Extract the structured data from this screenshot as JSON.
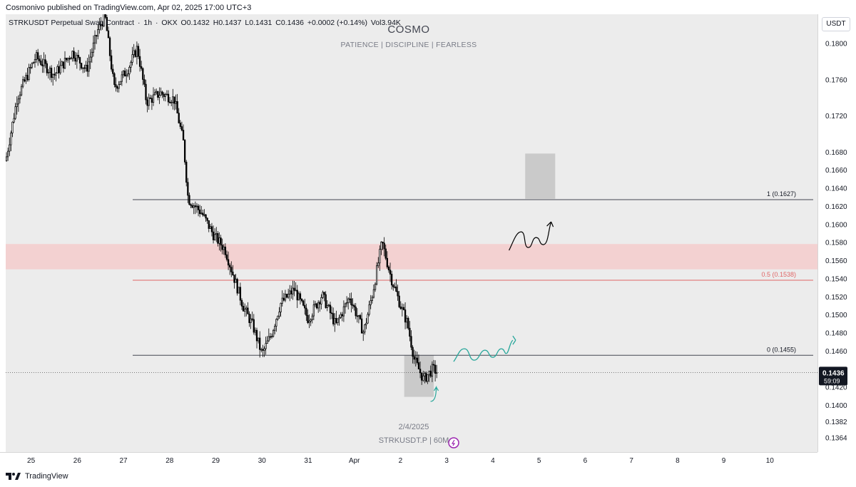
{
  "publish_line": "Cosmonivo published on TradingView.com, Apr 02, 2025 17:00 UTC+3",
  "legend": {
    "symbol": "STRKUSDT Perpetual Swap Contract",
    "interval": "1h",
    "exchange": "OKX",
    "open": "O0.1432",
    "high": "H0.1437",
    "low": "L0.1431",
    "close": "C0.1436",
    "change": "+0.0002 (+0.14%)",
    "volume": "Vol3.94K"
  },
  "header": {
    "title": "COSMO",
    "subtitle": "PATIENCE   |   DISCIPLINE   |   FEARLESS"
  },
  "currency": "USDT",
  "watermark": {
    "date": "2/4/2025",
    "symbol": "STRKUSDT.P | 60M"
  },
  "countdown": "59:09",
  "footer_brand": "TradingView",
  "colors": {
    "plot_bg": "#ececec",
    "candle": "#000000",
    "resistance_zone": "#f4cccc",
    "fib_mid_line": "#e06666",
    "fib_mid_label": "#e06666",
    "projection_green": "#26a69a",
    "projection_black": "#000000",
    "target_box": "#c6c6c6",
    "price_tag_bg": "#131722"
  },
  "chart_data": {
    "type": "candlestick",
    "title": "STRKUSDT Perpetual Swap Contract · 1h · OKX",
    "y_range": [
      0.1348,
      0.1832
    ],
    "y_ticks": [
      0.1364,
      0.1382,
      0.14,
      0.142,
      0.144,
      0.146,
      0.148,
      0.15,
      0.152,
      0.154,
      0.156,
      0.158,
      0.16,
      0.162,
      0.164,
      0.166,
      0.168,
      0.172,
      0.176,
      0.18
    ],
    "y_tick_labels": [
      "0.1364",
      "0.1382",
      "0.1400",
      "0.1420",
      "0.1440",
      "0.1460",
      "0.1480",
      "0.1500",
      "0.1520",
      "0.1540",
      "0.1560",
      "0.1580",
      "0.1600",
      "0.1620",
      "0.1640",
      "0.1660",
      "0.1680",
      "0.1720",
      "0.1760",
      "0.1800"
    ],
    "x_tick_labels": [
      "25",
      "26",
      "27",
      "28",
      "29",
      "30",
      "31",
      "Apr",
      "2",
      "3",
      "4",
      "5",
      "6",
      "7",
      "8",
      "9",
      "10"
    ],
    "x_tick_days": [
      25,
      26,
      27,
      28,
      29,
      30,
      31,
      32,
      33,
      34,
      35,
      36,
      37,
      38,
      39,
      40,
      41
    ],
    "x_range_days": [
      24.45,
      42.03
    ],
    "price_path": [
      [
        24.45,
        0.167
      ],
      [
        24.7,
        0.174
      ],
      [
        25.1,
        0.1785
      ],
      [
        25.5,
        0.1765
      ],
      [
        25.9,
        0.179
      ],
      [
        26.2,
        0.177
      ],
      [
        26.45,
        0.1815
      ],
      [
        26.6,
        0.183
      ],
      [
        26.8,
        0.175
      ],
      [
        27.1,
        0.1772
      ],
      [
        27.3,
        0.1795
      ],
      [
        27.5,
        0.1735
      ],
      [
        27.8,
        0.1745
      ],
      [
        28.1,
        0.1738
      ],
      [
        28.3,
        0.169
      ],
      [
        28.4,
        0.1628
      ],
      [
        28.7,
        0.1612
      ],
      [
        28.95,
        0.1588
      ],
      [
        29.2,
        0.1572
      ],
      [
        29.4,
        0.154
      ],
      [
        29.6,
        0.1508
      ],
      [
        29.8,
        0.1488
      ],
      [
        30.0,
        0.1456
      ],
      [
        30.2,
        0.1478
      ],
      [
        30.4,
        0.1512
      ],
      [
        30.7,
        0.1528
      ],
      [
        31.0,
        0.1495
      ],
      [
        31.3,
        0.1522
      ],
      [
        31.6,
        0.1488
      ],
      [
        31.9,
        0.152
      ],
      [
        32.2,
        0.148
      ],
      [
        32.4,
        0.1525
      ],
      [
        32.6,
        0.158
      ],
      [
        32.8,
        0.154
      ],
      [
        33.0,
        0.151
      ],
      [
        33.15,
        0.149
      ],
      [
        33.3,
        0.145
      ],
      [
        33.5,
        0.1428
      ],
      [
        33.7,
        0.144
      ],
      [
        33.8,
        0.1436
      ]
    ],
    "candle_count": 288,
    "levels": [
      {
        "label": "1 (0.1627)",
        "value": 0.1627,
        "from_day": 27.2
      },
      {
        "label": "0.5 (0.1538)",
        "value": 0.1538,
        "from_day": 27.2
      },
      {
        "label": "0 (0.1455)",
        "value": 0.1455,
        "from_day": 27.2
      }
    ],
    "zones": [
      {
        "name": "resistance-zone",
        "from": 0.155,
        "to": 0.1578
      },
      {
        "name": "entry-box",
        "from": 0.1409,
        "to": 0.1455,
        "day_from": 33.08,
        "day_to": 33.72
      },
      {
        "name": "target-box",
        "from": 0.1628,
        "to": 0.1678,
        "day_from": 35.7,
        "day_to": 36.35
      }
    ],
    "last_price": "0.1436",
    "last_value": 0.1436
  }
}
